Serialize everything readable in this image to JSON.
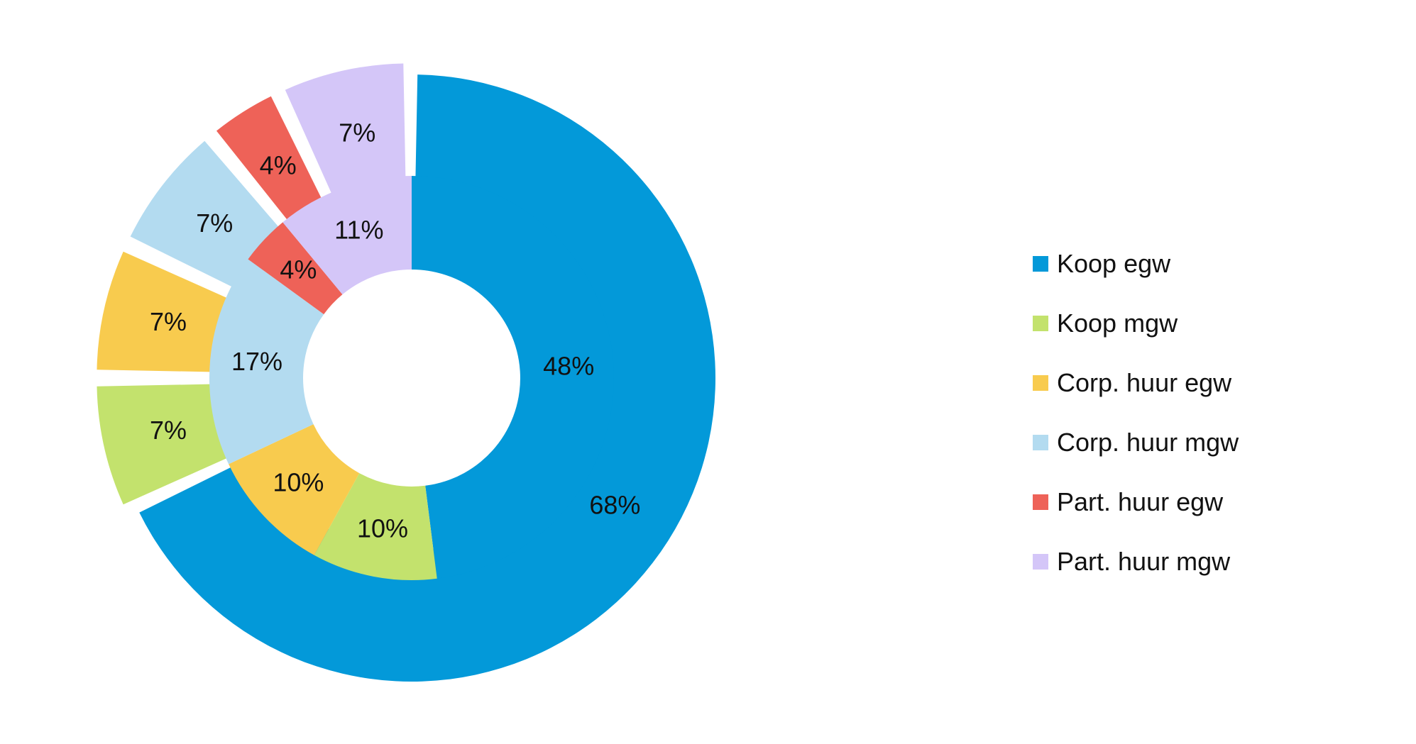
{
  "chart_data": {
    "type": "pie",
    "subtype": "nested-donut",
    "legend_position": "right",
    "categories": [
      "Koop egw",
      "Koop mgw",
      "Corp. huur egw",
      "Corp. huur mgw",
      "Part. huur egw",
      "Part. huur mgw"
    ],
    "colors": [
      "#0399d9",
      "#c3e26d",
      "#f8cb4e",
      "#b3dbf0",
      "#ee6258",
      "#d4c6f8"
    ],
    "series": [
      {
        "ring": "outer",
        "values": [
          68,
          7,
          7,
          7,
          4,
          7
        ],
        "labels": [
          "68%",
          "7%",
          "7%",
          "7%",
          "4%",
          "7%"
        ]
      },
      {
        "ring": "inner",
        "values": [
          48,
          10,
          10,
          17,
          4,
          11
        ],
        "labels": [
          "48%",
          "10%",
          "10%",
          "17%",
          "4%",
          "11%"
        ]
      }
    ]
  }
}
